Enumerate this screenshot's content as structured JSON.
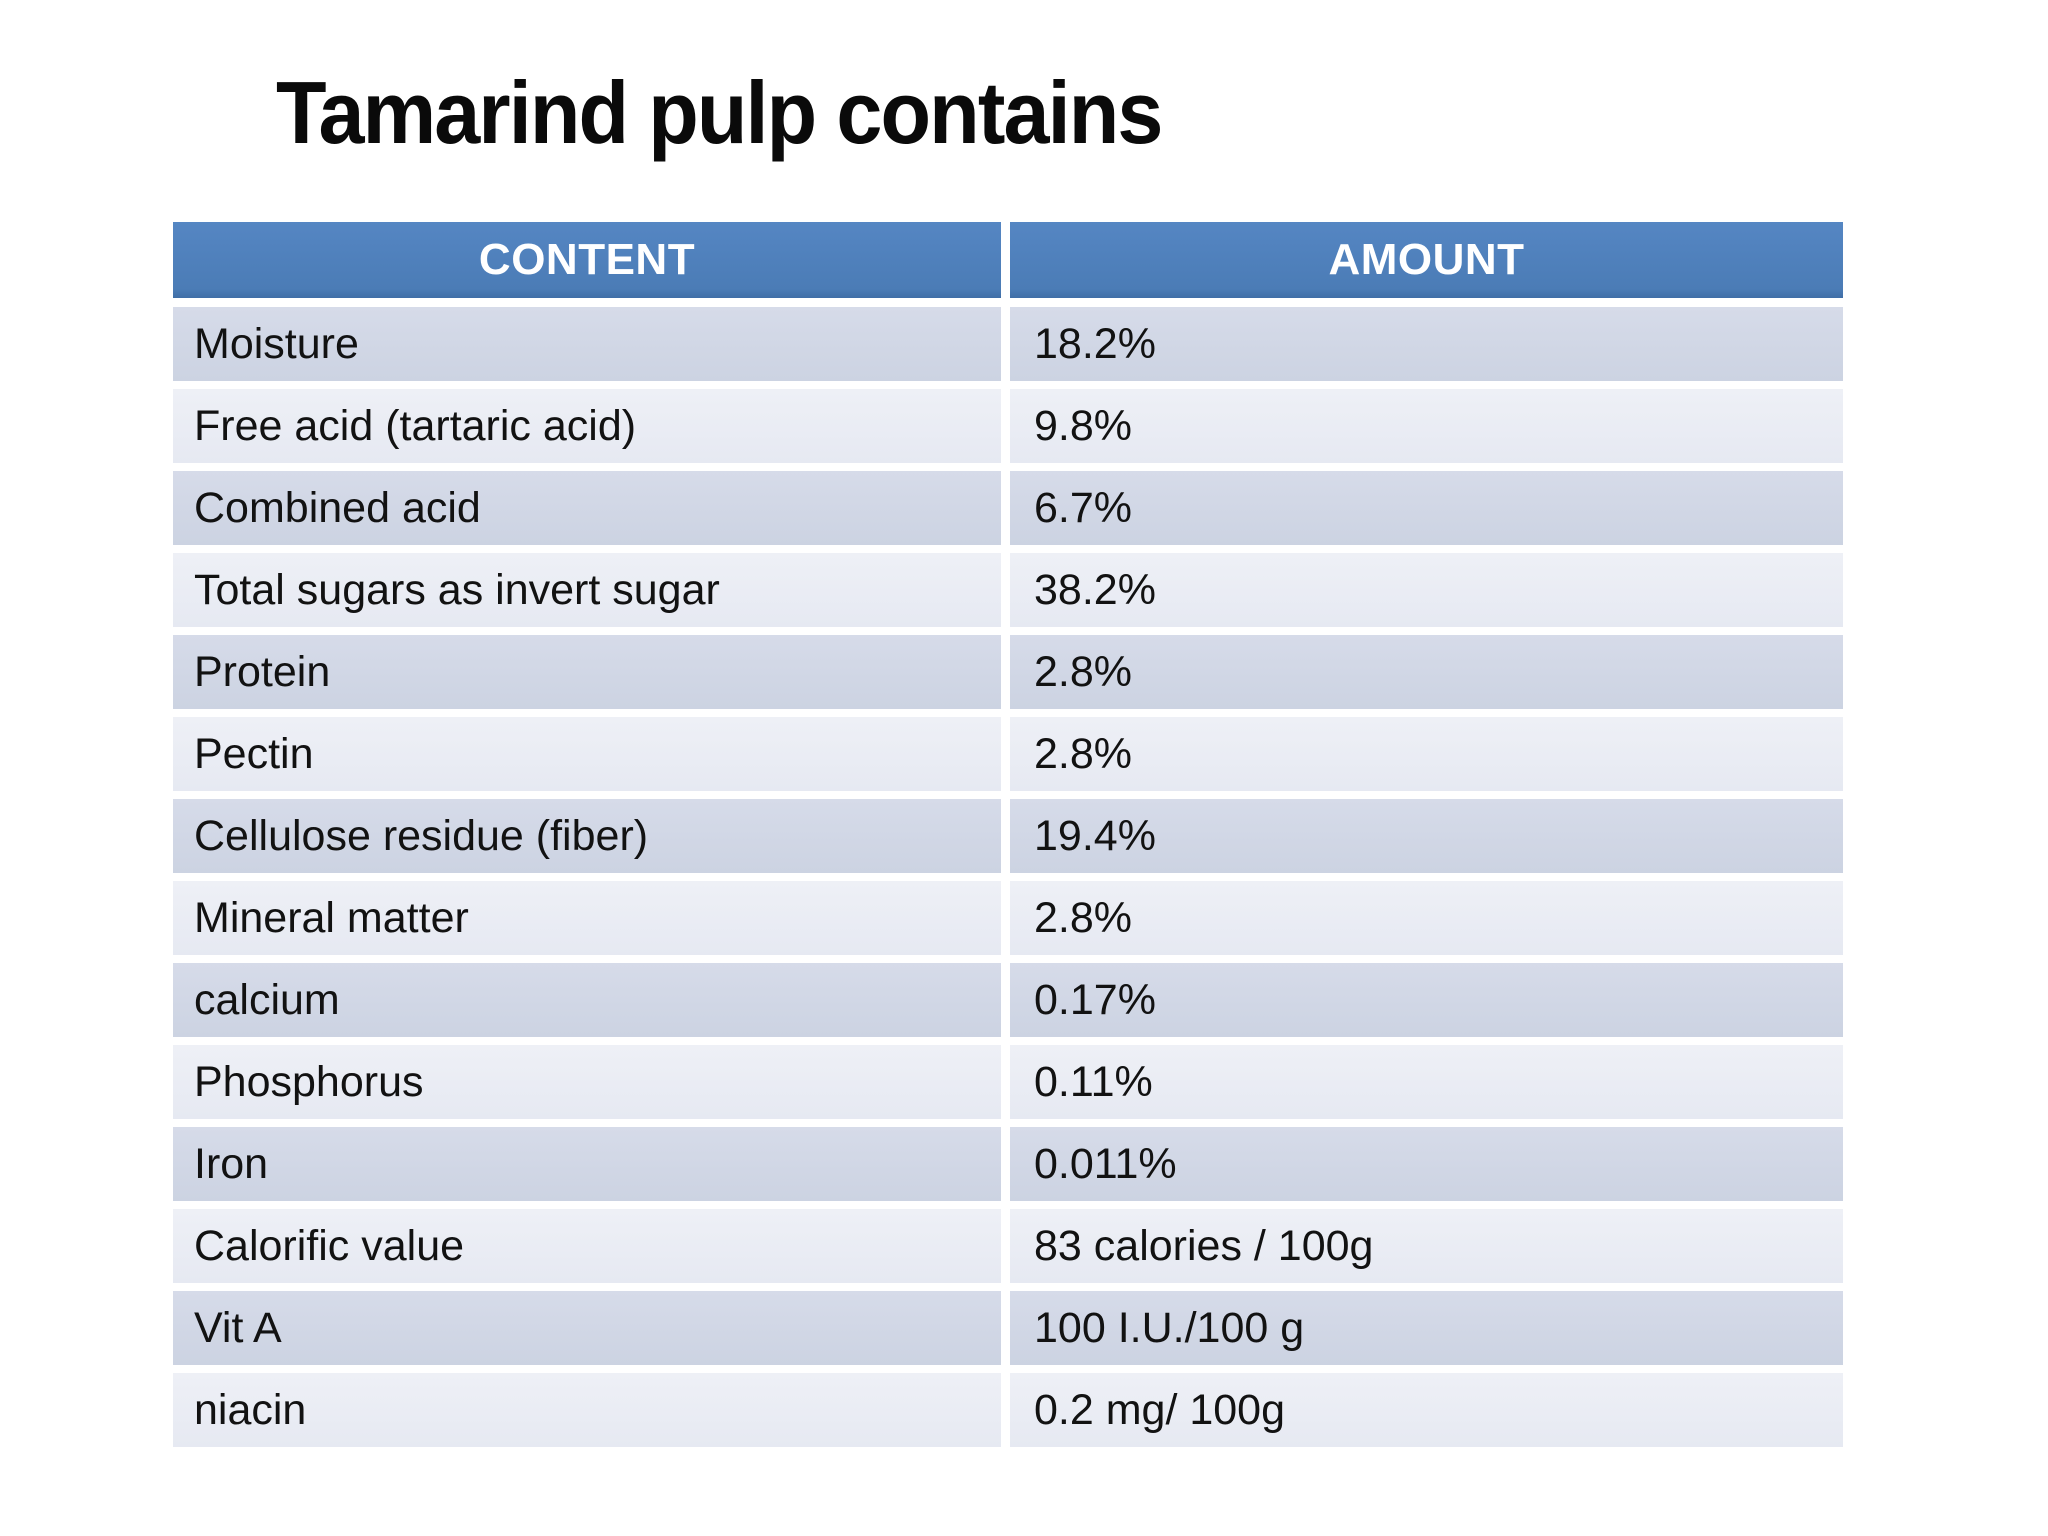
{
  "slide": {
    "title": "Tamarind pulp contains"
  },
  "table": {
    "headers": {
      "content": "CONTENT",
      "amount": "AMOUNT"
    },
    "rows": [
      {
        "content": "Moisture",
        "amount": "18.2%"
      },
      {
        "content": "Free acid (tartaric acid)",
        "amount": "9.8%"
      },
      {
        "content": "Combined acid",
        "amount": "6.7%"
      },
      {
        "content": "Total sugars as invert sugar",
        "amount": "38.2%"
      },
      {
        "content": "Protein",
        "amount": "2.8%"
      },
      {
        "content": "Pectin",
        "amount": "2.8%"
      },
      {
        "content": "Cellulose residue (fiber)",
        "amount": "19.4%"
      },
      {
        "content": "Mineral matter",
        "amount": "2.8%"
      },
      {
        "content": "calcium",
        "amount": "0.17%"
      },
      {
        "content": "Phosphorus",
        "amount": "0.11%"
      },
      {
        "content": "Iron",
        "amount": "0.011%"
      },
      {
        "content": "Calorific value",
        "amount": "83 calories / 100g"
      },
      {
        "content": "Vit A",
        "amount": "100 I.U./100 g"
      },
      {
        "content": "niacin",
        "amount": "0.2 mg/ 100g"
      }
    ]
  },
  "colors": {
    "header_bg": "#4E81BD",
    "header_text": "#FFFFFF",
    "band_dark": "#CDD4E3",
    "band_light": "#E9EBF3",
    "body_text": "#121212",
    "title_text": "#0A0A0A"
  }
}
